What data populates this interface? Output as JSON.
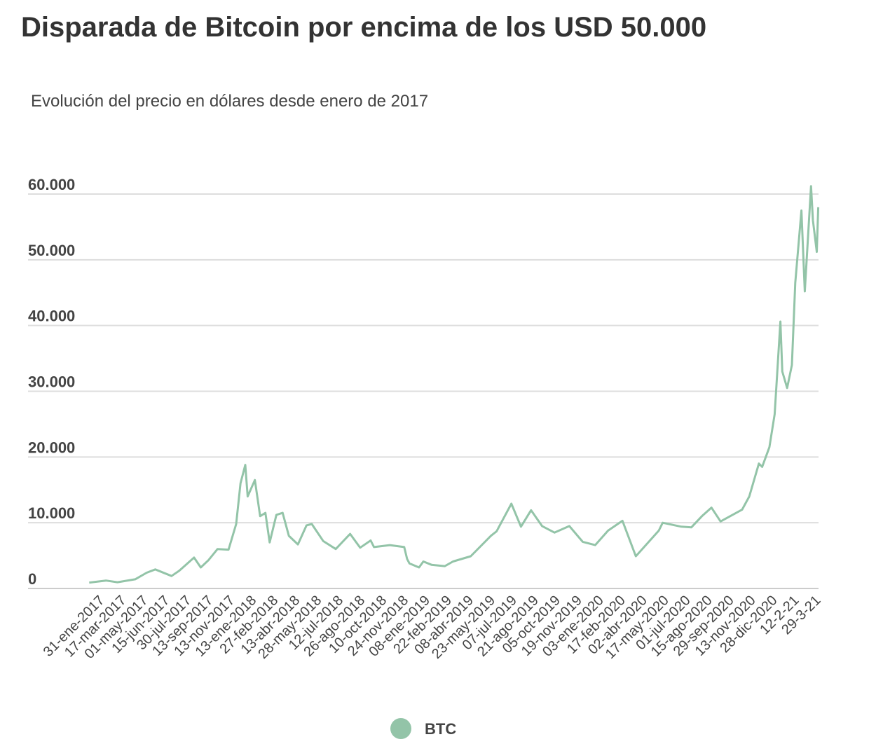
{
  "chart_data": {
    "type": "line",
    "title": "Disparada de Bitcoin por encima de los USD 50.000",
    "subtitle": "Evolución del precio en dólares desde enero de 2017",
    "xlabel": "",
    "ylabel": "",
    "ylim": [
      0,
      60000
    ],
    "yticks": [
      0,
      10000,
      20000,
      30000,
      40000,
      50000,
      60000
    ],
    "ytick_labels": [
      "0",
      "10.000",
      "20.000",
      "30.000",
      "40.000",
      "50.000",
      "60.000"
    ],
    "grid": true,
    "legend_position": "bottom",
    "xtick_labels": [
      "31-ene-2017",
      "17-mar-2017",
      "01-may-2017",
      "15-jun-2017",
      "30-jul-2017",
      "13-sep-2017",
      "13-nov-2017",
      "13-ene-2018",
      "27-feb-2018",
      "13-abr-2018",
      "28-may-2018",
      "12-jul-2018",
      "26-ago-2018",
      "10-oct-2018",
      "24-nov-2018",
      "08-ene-2019",
      "22-feb-2019",
      "08-abr-2019",
      "23-may-2019",
      "07-jul-2019",
      "21-ago-2019",
      "05-oct-2019",
      "19-nov-2019",
      "03-ene-2020",
      "17-feb-2020",
      "02-abr-2020",
      "17-may-2020",
      "01-jul-2020",
      "15-ago-2020",
      "29-sep-2020",
      "13-nov-2020",
      "28-dic-2020",
      "12-2-21",
      "29-3-21"
    ],
    "series": [
      {
        "name": "BTC",
        "color": "#93c4a8",
        "points": [
          [
            "2017-01-25",
            900
          ],
          [
            "2017-03-01",
            1200
          ],
          [
            "2017-03-25",
            950
          ],
          [
            "2017-05-01",
            1400
          ],
          [
            "2017-05-25",
            2400
          ],
          [
            "2017-06-12",
            2900
          ],
          [
            "2017-07-16",
            1900
          ],
          [
            "2017-08-01",
            2700
          ],
          [
            "2017-09-01",
            4700
          ],
          [
            "2017-09-15",
            3200
          ],
          [
            "2017-10-01",
            4300
          ],
          [
            "2017-10-20",
            6000
          ],
          [
            "2017-11-12",
            5900
          ],
          [
            "2017-11-28",
            9800
          ],
          [
            "2017-12-07",
            16000
          ],
          [
            "2017-12-17",
            18800
          ],
          [
            "2017-12-22",
            14000
          ],
          [
            "2018-01-06",
            16500
          ],
          [
            "2018-01-17",
            11000
          ],
          [
            "2018-01-28",
            11500
          ],
          [
            "2018-02-06",
            7000
          ],
          [
            "2018-02-20",
            11200
          ],
          [
            "2018-03-05",
            11500
          ],
          [
            "2018-03-18",
            8000
          ],
          [
            "2018-04-06",
            6700
          ],
          [
            "2018-04-24",
            9600
          ],
          [
            "2018-05-05",
            9800
          ],
          [
            "2018-05-29",
            7200
          ],
          [
            "2018-06-24",
            6000
          ],
          [
            "2018-07-24",
            8300
          ],
          [
            "2018-08-14",
            6200
          ],
          [
            "2018-09-05",
            7300
          ],
          [
            "2018-09-12",
            6300
          ],
          [
            "2018-10-15",
            6600
          ],
          [
            "2018-11-14",
            6300
          ],
          [
            "2018-11-20",
            4500
          ],
          [
            "2018-11-25",
            3800
          ],
          [
            "2018-12-15",
            3200
          ],
          [
            "2018-12-24",
            4100
          ],
          [
            "2019-01-10",
            3600
          ],
          [
            "2019-02-07",
            3400
          ],
          [
            "2019-02-24",
            4100
          ],
          [
            "2019-04-02",
            4900
          ],
          [
            "2019-05-14",
            8000
          ],
          [
            "2019-05-26",
            8700
          ],
          [
            "2019-06-26",
            12900
          ],
          [
            "2019-07-16",
            9400
          ],
          [
            "2019-08-06",
            11900
          ],
          [
            "2019-08-29",
            9500
          ],
          [
            "2019-09-24",
            8500
          ],
          [
            "2019-10-25",
            9500
          ],
          [
            "2019-11-22",
            7100
          ],
          [
            "2019-12-18",
            6600
          ],
          [
            "2020-01-14",
            8800
          ],
          [
            "2020-02-13",
            10300
          ],
          [
            "2020-03-12",
            4900
          ],
          [
            "2020-04-29",
            8800
          ],
          [
            "2020-05-07",
            10000
          ],
          [
            "2020-06-15",
            9400
          ],
          [
            "2020-07-06",
            9300
          ],
          [
            "2020-07-28",
            11000
          ],
          [
            "2020-08-17",
            12300
          ],
          [
            "2020-09-05",
            10200
          ],
          [
            "2020-10-20",
            12000
          ],
          [
            "2020-11-04",
            14000
          ],
          [
            "2020-11-24",
            19000
          ],
          [
            "2020-12-01",
            18500
          ],
          [
            "2020-12-16",
            21500
          ],
          [
            "2020-12-27",
            26500
          ],
          [
            "2021-01-08",
            40600
          ],
          [
            "2021-01-12",
            33000
          ],
          [
            "2021-01-22",
            30500
          ],
          [
            "2021-02-01",
            34000
          ],
          [
            "2021-02-08",
            46500
          ],
          [
            "2021-02-21",
            57500
          ],
          [
            "2021-02-28",
            45200
          ],
          [
            "2021-03-13",
            61200
          ],
          [
            "2021-03-17",
            56000
          ],
          [
            "2021-03-25",
            51200
          ],
          [
            "2021-03-28",
            58000
          ]
        ]
      }
    ]
  }
}
